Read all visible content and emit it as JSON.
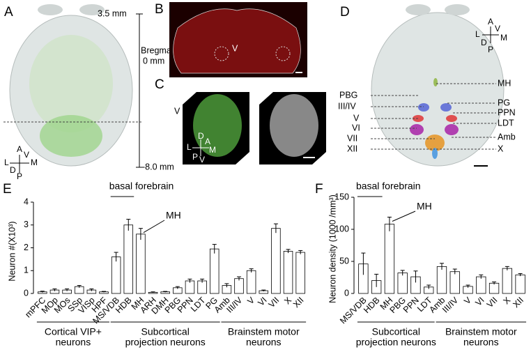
{
  "chart_data": [
    {
      "type": "bar",
      "panel": "E",
      "ylabel": "Neuron #(X10³)",
      "categories": [
        "mPFC",
        "MOp",
        "MOs",
        "SSp",
        "VISp",
        "HPF",
        "MS/VDB",
        "HDB",
        "MH",
        "ARH",
        "DMH",
        "PBG",
        "PPN",
        "LDT",
        "PG",
        "Amb",
        "III/IV",
        "V",
        "VI",
        "VII",
        "X",
        "XII"
      ],
      "values": [
        0.07,
        0.15,
        0.15,
        0.3,
        0.15,
        0.07,
        1.6,
        3.0,
        2.6,
        0.05,
        0.07,
        0.25,
        0.55,
        0.55,
        1.95,
        0.35,
        0.65,
        1.0,
        0.12,
        2.85,
        1.85,
        1.8
      ],
      "errors": [
        0.03,
        0.05,
        0.05,
        0.05,
        0.05,
        0.02,
        0.2,
        0.25,
        0.25,
        0.02,
        0.02,
        0.05,
        0.08,
        0.08,
        0.2,
        0.08,
        0.08,
        0.08,
        0.03,
        0.2,
        0.08,
        0.08
      ],
      "ylim": [
        0,
        4
      ],
      "yticks": [
        0,
        1,
        2,
        3,
        4
      ],
      "color": "#ffffff",
      "groups": [
        [
          "Cortical VIP+",
          "neurons"
        ],
        [
          "Subcortical",
          "projection neurons"
        ],
        [
          "Brainstem motor",
          "neurons"
        ]
      ],
      "annotations": [
        "basal forebrain",
        "MH"
      ]
    },
    {
      "type": "bar",
      "panel": "F",
      "ylabel": "Neuron density (1000 /mm³)",
      "categories": [
        "MS/VDB",
        "HDB",
        "MH",
        "PBG",
        "PPN",
        "LDT",
        "Amb",
        "III/IV",
        "V",
        "VI",
        "VII",
        "X",
        "XII"
      ],
      "values": [
        46,
        20,
        108,
        32,
        26,
        10,
        42,
        34,
        11,
        26,
        16,
        39,
        29
      ],
      "errors": [
        17,
        10,
        11,
        4,
        9,
        3,
        5,
        4,
        2,
        3,
        2,
        3,
        2
      ],
      "ylim": [
        0,
        150
      ],
      "yticks": [
        0,
        50,
        100,
        150
      ],
      "color": "#ffffff",
      "groups": [
        [
          "Subcortical",
          "projection neurons"
        ],
        [
          "Brainstem motor",
          "neurons"
        ]
      ],
      "annotations": [
        "basal forebrain",
        "MH"
      ]
    }
  ],
  "figure": {
    "A": {
      "letter": "A",
      "top": "3.5 mm",
      "bregma": "Bregma",
      "zero": "0 mm",
      "bottom": "-8.0 mm",
      "compass": [
        "A",
        "V",
        "L",
        "M",
        "D",
        "P"
      ]
    },
    "B": {
      "letter": "B",
      "label": "V"
    },
    "C": {
      "letter": "C",
      "label": "V",
      "compass": [
        "D",
        "A",
        "L",
        "M",
        "P",
        "V"
      ]
    },
    "D": {
      "letter": "D",
      "compass": [
        "A",
        "V",
        "L",
        "M",
        "D",
        "P"
      ],
      "right": [
        "MH",
        "PG",
        "PPN",
        "LDT",
        "Amb",
        "X"
      ],
      "left": [
        "PBG",
        "III/IV",
        "V",
        "VI",
        "VII",
        "XII"
      ]
    }
  }
}
